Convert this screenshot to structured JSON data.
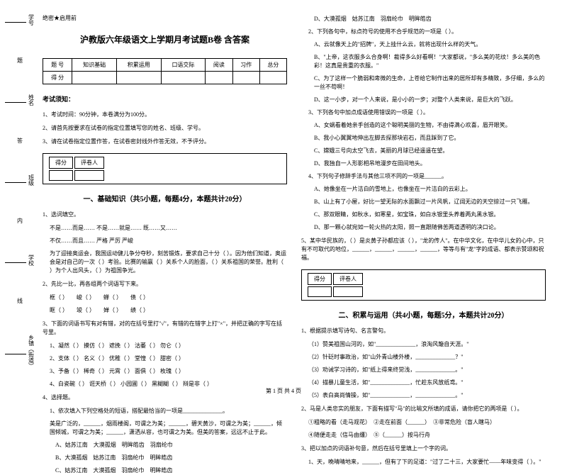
{
  "header": {
    "secret": "绝密★启用前"
  },
  "title": "沪教版六年级语文上学期月考试题B卷 含答案",
  "scoreTable": {
    "headers": [
      "题 号",
      "知识基础",
      "积累运用",
      "口语交际",
      "阅读",
      "习作",
      "总分"
    ],
    "row2label": "得 分"
  },
  "notice": {
    "head": "考试须知：",
    "items": [
      "1、考试时间：90分钟，本卷满分为100分。",
      "2、请首先按要求在试卷的指定位置填写您的姓名、班级、学号。",
      "3、请在试卷指定位置作答，在试卷密封线外作答无效，不予评分。"
    ]
  },
  "scoreBox": {
    "c1": "得分",
    "c2": "评卷人"
  },
  "section1": {
    "title": "一、基础知识（共5小题，每题4分，本题共计20分）",
    "q1": "1、选词填空。",
    "q1a": "不是……而是……     不是……就是……     既……又……",
    "q1b": "不仅……而且……     严格     严厉     严峻",
    "q1c": "为了迎接奥运会，我国运动健儿争分夺秒，刻苦锻炼，要求自己十分（    ）。因为他们知道，奥运会是对自己的一次（   ）考验。比赛的输赢（   ）关系个人的脸面，（   ）关系祖国的荣誉。胜利（   ）为个人出风头，（   ）为祖国争光。",
    "q2": "2、先比一比，再各组两个词语写下来。",
    "q2a": "框（    ）　　峻（    ）　　蝉（    ）　　债（    ）",
    "q2b": "眶（    ）　　竣（    ）　　婵（    ）　　绩（    ）",
    "q3": "3、下面的词语书写有对有错，对的在括号里打\"√\"，有错的在错字上打\"×\"，并把正确的字写在括号里。",
    "q3a": "1、凝然（   ）   摸仿（   ）   遮挽（   ）   沽萎（   ）   勿仑（   ）",
    "q3b": "2、支体（   ）   名义（   ）   优稚（   ）   堂惶（   ）   甜密（   ）",
    "q3c": "3、予备（   ）   稀奇（   ）   元霄（   ）   面俱（   ）   枚瑰（   ）",
    "q3d": "4、白瓷碗（   ）   诳天桥（   ）   小园圃（   ）   黑糊糊（   ）   辩是非（   ）",
    "q4": "4、选择题。",
    "q4a": "1、依次填入下列空格处的短语，搭配最恰当的一项是______________。",
    "q4b": "美是广泛的，______，烟雨楼阁，可谓之为美；______，碧天黄沙，可谓之为美；______，倾国倾城，可谓之为美；______，潇洒从容，也可谓之为美。但美的答案，远远不止于此。",
    "optA": "A、姑苏江南　大漠孤烟　明眸皓齿　羽扇纶巾",
    "optB": "B、大漠孤烟　姑苏江南　羽扇纶巾　明眸皓齿",
    "optC": "C、姑苏江南　大漠孤烟　羽扇纶巾　明眸皓齿",
    "optD": "D、大漠孤烟　姑苏江南　羽扇纶巾　明眸皓齿",
    "q4c": "2、下列各句中，标点符号的使用不合乎规范的一项是（    ）。",
    "q4c1": "A、云就像天上的\"招牌\"，天上挂什么云，就将出现什么样的天气。",
    "q4c2": "B、\"上帝，这衣服多么合身啊！裁得多么好看啊！\"大家都说，\"多么美的花纹！多么美的色彩！这真是贵重的衣服。\"",
    "q4c3": "C、为了这样一个脆弱和卑微的生命，上苍给它制作出来的居所却有多精致，多仔细，多么的一丝不苟啊！",
    "q4c4": "D、这一小步，对一个人来说，是小小的一步；对整个人类来说，是巨大的飞跃。",
    "q4d": "3、下列各句中加点成语使用错误的一项是（    ）。",
    "q4d1": "A、女娲看着她亲手创造的这个聪明美丽的生物，不由得满心欢喜，眉开眼笑。",
    "q4d2": "B、我小心翼翼地伸出左脚去探那块岩石，而且踩到了它。",
    "q4d3": "C、嫦娥三号向太空飞去，美丽的月球已经遥遥在望。",
    "q4d4": "D、我独自一人形影相吊地漫步在田间地头。",
    "q4e": "4、下列句子修辞手法与其他三项不同的一项是______。",
    "q4e1": "A、她像坐在一片洁白的雪地上，也像坐在一片洁白的云彩上。",
    "q4e2": "B、山上有了小屋，好比一望无际的水面飘过一片风帆，辽阔无边的天空掠过一只飞雁。",
    "q4e3": "C、那双眼睛，如秋水，如寒星，如宝珠，如白水银里头养着两丸黑水银。",
    "q4e4": "D、那一颗心就宛如一轮火热的太阳，照一直跟随佛苦两道透明的决口论。",
    "q5": "5、某中华民族的，（   ）是炎黄子孙都应该（   ），\"龙的传人\"。在中华文化，在中华儿女的心中，只有不可取代的地位，______，______，______，______，等等与有\"龙\"字的成语、都表示赞颂和祝福。"
  },
  "section2": {
    "title": "二、积累与运用（共4小题，每题5分，本题共计20分）",
    "q1": "1、根据提示填写诗句、名言警句。",
    "q1a": "（1）赞美祖国山河的，如\"______________，浪淘风簸自天涯。\"",
    "q1b": "（2）针砭时事政治，如\"山外青山楼外楼，______________？\"",
    "q1c": "（3）劝诫学习诗的，如\"纸上得来终觉浅，______________。\"",
    "q1d": "（4）描暴儿童生活，如\"______________，忙趁东风放纸鸢。\"",
    "q1e": "（5）表白高尚情操，如\"______________，______________。\"",
    "q2": "2、马是人类忠实的朋友，下面有描写\"马\"的比喻文所填的成语，请你把它的两项是（   ）。",
    "q2a": "①粗略的看（走马观花）　②走在前面（______）　③非常危险（盲人瞎马）",
    "q2b": "④随便走走（信马由缰）　⑤（______）按马行舟",
    "q3": "3、把以加点的词语补句意，然后在括号里填上一个字的词。",
    "q3a": "1、天，晚晴晴地来，______，但有了下的足道：\"过了二十三，大家要忙――年味变得（   ）。\""
  },
  "sideLabels": {
    "xuehao": "学号",
    "xingming": "姓名",
    "banji": "班级",
    "xuexiao": "学校",
    "xiangzhen": "乡镇（街道）",
    "nei": "内",
    "xian": "线",
    "ti": "题",
    "da": "答",
    "buzhun": "不准"
  },
  "footer": "第 1 页 共 4 页"
}
